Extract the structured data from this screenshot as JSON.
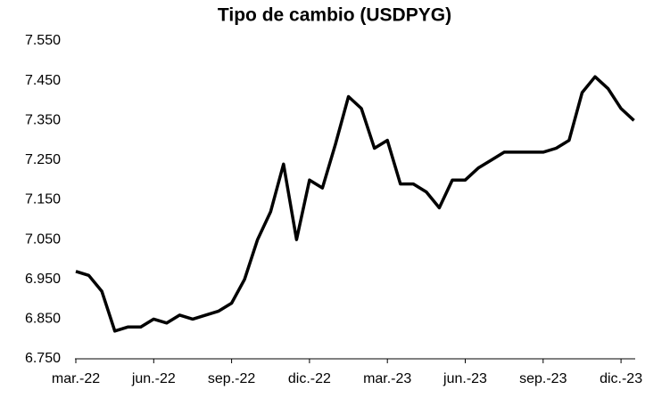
{
  "chart_data": {
    "type": "line",
    "title": "Tipo de cambio (USDPYG)",
    "categories": [
      "mar.-22",
      null,
      null,
      null,
      null,
      null,
      "jun.-22",
      null,
      null,
      null,
      null,
      null,
      "sep.-22",
      null,
      null,
      null,
      null,
      null,
      "dic.-22",
      null,
      null,
      null,
      null,
      null,
      "mar.-23",
      null,
      null,
      null,
      null,
      null,
      "jun.-23",
      null,
      null,
      null,
      null,
      null,
      "sep.-23",
      null,
      null,
      null,
      null,
      null,
      "dic.-23",
      null
    ],
    "series": [
      {
        "name": "USDPYG",
        "color": "#000000",
        "values": [
          6970,
          6960,
          6920,
          6820,
          6830,
          6830,
          6850,
          6840,
          6860,
          6850,
          6860,
          6870,
          6890,
          6950,
          7050,
          7120,
          7240,
          7050,
          7200,
          7180,
          7290,
          7410,
          7380,
          7280,
          7300,
          7190,
          7190,
          7170,
          7130,
          7200,
          7200,
          7230,
          7250,
          7270,
          7270,
          7270,
          7270,
          7280,
          7300,
          7420,
          7460,
          7430,
          7380,
          7350
        ]
      }
    ],
    "ylim": [
      6750,
      7550
    ],
    "yticks": [
      {
        "value": 6750,
        "label": "6.750"
      },
      {
        "value": 6850,
        "label": "6.850"
      },
      {
        "value": 6950,
        "label": "6.950"
      },
      {
        "value": 7050,
        "label": "7.050"
      },
      {
        "value": 7150,
        "label": "7.150"
      },
      {
        "value": 7250,
        "label": "7.250"
      },
      {
        "value": 7350,
        "label": "7.350"
      },
      {
        "value": 7450,
        "label": "7.450"
      },
      {
        "value": 7550,
        "label": "7.550"
      }
    ],
    "grid": false
  }
}
